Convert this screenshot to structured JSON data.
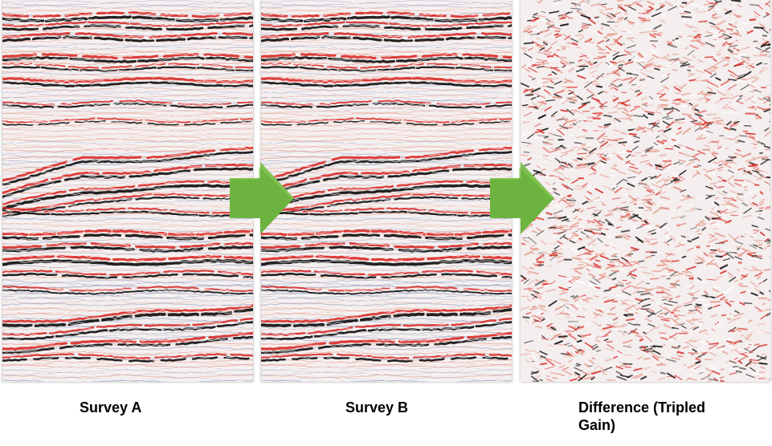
{
  "captions": {
    "a": "Survey A",
    "b": "Survey B",
    "c": "Difference (Tripled Gain)"
  },
  "colors": {
    "positive": "#d9302b",
    "negative": "#111111",
    "faint_pos": "#e59a8a",
    "faint_neg": "#9aa3c2",
    "background": "#f4eeee",
    "arrow": "#6db33f"
  },
  "panels": [
    {
      "id": "panel-a",
      "kind": "seismic-section"
    },
    {
      "id": "panel-b",
      "kind": "seismic-section"
    },
    {
      "id": "panel-c",
      "kind": "difference-noise"
    }
  ]
}
